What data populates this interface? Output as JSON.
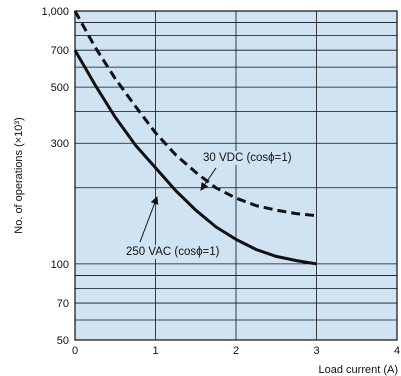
{
  "chart_data": {
    "type": "line",
    "title": "",
    "xlabel": "Load current (A)",
    "ylabel": "No. of operations (×10³)",
    "xlim": [
      0,
      4
    ],
    "ylim": [
      50,
      1000
    ],
    "y_scale": "log",
    "x_ticks": [
      0,
      1,
      2,
      3,
      4
    ],
    "x_tick_labels": [
      "0",
      "1",
      "2",
      "3",
      "4"
    ],
    "y_ticks": [
      50,
      70,
      100,
      300,
      500,
      700,
      1000
    ],
    "y_tick_labels": [
      "50",
      "70",
      "100",
      "300",
      "500",
      "700",
      "1,000"
    ],
    "y_grid": [
      50,
      60,
      70,
      80,
      90,
      100,
      200,
      300,
      400,
      500,
      600,
      700,
      800,
      900,
      1000
    ],
    "grid": true,
    "background_color": "#cfe3f3",
    "line_color": "#111111",
    "series": [
      {
        "name": "30 VDC (cosϕ=1)",
        "style": "dashed",
        "x": [
          0,
          0.25,
          0.5,
          0.75,
          1,
          1.25,
          1.5,
          1.75,
          2,
          2.25,
          2.5,
          2.75,
          3
        ],
        "y": [
          1000,
          720,
          540,
          420,
          330,
          270,
          230,
          200,
          182,
          170,
          163,
          158,
          155
        ]
      },
      {
        "name": "250 VAC (cosϕ=1)",
        "style": "solid",
        "x": [
          0,
          0.25,
          0.5,
          0.75,
          1,
          1.25,
          1.5,
          1.75,
          2,
          2.25,
          2.5,
          2.75,
          3
        ],
        "y": [
          700,
          510,
          380,
          295,
          240,
          195,
          163,
          140,
          125,
          114,
          107,
          103,
          100
        ]
      }
    ],
    "annotations": [
      {
        "text": "30 VDC (cosϕ=1)",
        "series": 0
      },
      {
        "text": "250 VAC (cosϕ=1)",
        "series": 1
      }
    ]
  }
}
